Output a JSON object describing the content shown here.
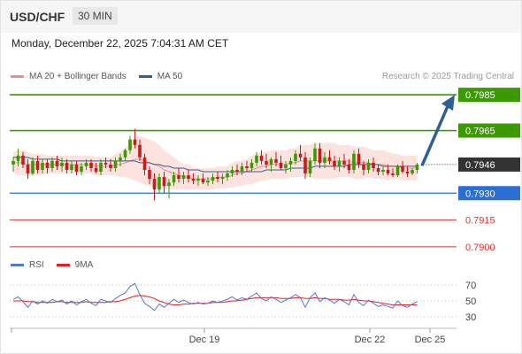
{
  "header": {
    "pair": "USD/CHF",
    "timeframe": "30 MIN"
  },
  "datetime": "Monday, December 22, 2025 7:04:31 AM CET",
  "legend": [
    {
      "label": "MA 20 + Bollinger Bands",
      "color": "#f28b8b"
    },
    {
      "label": "MA 50",
      "color": "#2e5f96"
    }
  ],
  "credit": "Research © 2025 Trading Central",
  "osc_legend": [
    {
      "label": "RSI",
      "color": "#5577cc"
    },
    {
      "label": "9MA",
      "color": "#e02020"
    }
  ],
  "chart_data": {
    "type": "candlestick",
    "ylim": [
      0.7895,
      0.799
    ],
    "current_price": "0.7946",
    "levels": [
      {
        "value": 0.7985,
        "label": "0.7985",
        "kind": "target",
        "color": "#3a9a00"
      },
      {
        "value": 0.7965,
        "label": "0.7965",
        "kind": "resistance",
        "color": "#3a9a00"
      },
      {
        "value": 0.793,
        "label": "0.7930",
        "kind": "pivot",
        "color": "#2b6fd4"
      },
      {
        "value": 0.7915,
        "label": "0.7915",
        "kind": "support",
        "color": "#e03030"
      },
      {
        "value": 0.79,
        "label": "0.7900",
        "kind": "support",
        "color": "#e03030"
      }
    ],
    "x_ticks": [
      "Dec 19",
      "Dec 22",
      "Dec 25"
    ],
    "candles": [
      [
        0.7946,
        0.795,
        0.7942,
        0.7948
      ],
      [
        0.7948,
        0.7955,
        0.7945,
        0.7951
      ],
      [
        0.7951,
        0.7953,
        0.7944,
        0.7946
      ],
      [
        0.7946,
        0.7949,
        0.7938,
        0.7941
      ],
      [
        0.7941,
        0.795,
        0.794,
        0.7948
      ],
      [
        0.7948,
        0.7951,
        0.7941,
        0.7943
      ],
      [
        0.7943,
        0.7949,
        0.7941,
        0.7947
      ],
      [
        0.7947,
        0.7949,
        0.7941,
        0.7944
      ],
      [
        0.7944,
        0.795,
        0.7942,
        0.7948
      ],
      [
        0.7948,
        0.7951,
        0.7943,
        0.7945
      ],
      [
        0.7945,
        0.795,
        0.7942,
        0.7947
      ],
      [
        0.7947,
        0.7949,
        0.7941,
        0.7943
      ],
      [
        0.7943,
        0.7948,
        0.7941,
        0.7946
      ],
      [
        0.7946,
        0.7948,
        0.794,
        0.7942
      ],
      [
        0.7942,
        0.7947,
        0.794,
        0.7945
      ],
      [
        0.7945,
        0.7949,
        0.7943,
        0.7947
      ],
      [
        0.7947,
        0.7949,
        0.7942,
        0.7944
      ],
      [
        0.7944,
        0.7947,
        0.7941,
        0.7942
      ],
      [
        0.7942,
        0.7949,
        0.794,
        0.7947
      ],
      [
        0.7947,
        0.795,
        0.7944,
        0.7946
      ],
      [
        0.7946,
        0.7949,
        0.7942,
        0.7944
      ],
      [
        0.7944,
        0.795,
        0.7942,
        0.7948
      ],
      [
        0.7948,
        0.7952,
        0.7945,
        0.795
      ],
      [
        0.795,
        0.7955,
        0.7948,
        0.7954
      ],
      [
        0.7954,
        0.7962,
        0.7952,
        0.796
      ],
      [
        0.796,
        0.7966,
        0.7955,
        0.7957
      ],
      [
        0.7957,
        0.796,
        0.7948,
        0.795
      ],
      [
        0.795,
        0.7952,
        0.794,
        0.7943
      ],
      [
        0.7943,
        0.7945,
        0.7935,
        0.7938
      ],
      [
        0.7938,
        0.7941,
        0.7926,
        0.7932
      ],
      [
        0.7932,
        0.7941,
        0.793,
        0.7939
      ],
      [
        0.7939,
        0.7942,
        0.793,
        0.7934
      ],
      [
        0.7934,
        0.7938,
        0.7927,
        0.7936
      ],
      [
        0.7936,
        0.7942,
        0.7934,
        0.794
      ],
      [
        0.794,
        0.7944,
        0.7936,
        0.7938
      ],
      [
        0.7938,
        0.7942,
        0.7935,
        0.794
      ],
      [
        0.794,
        0.7943,
        0.7936,
        0.7938
      ],
      [
        0.7938,
        0.7941,
        0.7935,
        0.7937
      ],
      [
        0.7937,
        0.794,
        0.7934,
        0.7938
      ],
      [
        0.7938,
        0.7941,
        0.7935,
        0.7936
      ],
      [
        0.7936,
        0.7939,
        0.7934,
        0.7937
      ],
      [
        0.7937,
        0.7941,
        0.7935,
        0.7939
      ],
      [
        0.7939,
        0.7942,
        0.7936,
        0.7938
      ],
      [
        0.7938,
        0.7941,
        0.7935,
        0.7939
      ],
      [
        0.7939,
        0.7943,
        0.7937,
        0.7941
      ],
      [
        0.7941,
        0.7945,
        0.7939,
        0.7943
      ],
      [
        0.7943,
        0.7946,
        0.794,
        0.7942
      ],
      [
        0.7942,
        0.7947,
        0.794,
        0.7945
      ],
      [
        0.7945,
        0.7948,
        0.7942,
        0.7944
      ],
      [
        0.7944,
        0.7949,
        0.7942,
        0.7947
      ],
      [
        0.7947,
        0.7953,
        0.7945,
        0.7951
      ],
      [
        0.7951,
        0.7954,
        0.7946,
        0.7948
      ],
      [
        0.7948,
        0.7952,
        0.7944,
        0.7946
      ],
      [
        0.7946,
        0.795,
        0.7942,
        0.7949
      ],
      [
        0.7949,
        0.7953,
        0.7945,
        0.7947
      ],
      [
        0.7947,
        0.7951,
        0.7943,
        0.7944
      ],
      [
        0.7944,
        0.7948,
        0.7941,
        0.7946
      ],
      [
        0.7946,
        0.795,
        0.7942,
        0.7948
      ],
      [
        0.7948,
        0.7954,
        0.7946,
        0.7952
      ],
      [
        0.7952,
        0.7957,
        0.7948,
        0.795
      ],
      [
        0.795,
        0.7953,
        0.7938,
        0.7941
      ],
      [
        0.7941,
        0.795,
        0.7939,
        0.7948
      ],
      [
        0.7948,
        0.7958,
        0.7946,
        0.7955
      ],
      [
        0.7955,
        0.7958,
        0.7944,
        0.7947
      ],
      [
        0.7947,
        0.7953,
        0.7944,
        0.795
      ],
      [
        0.795,
        0.7954,
        0.7946,
        0.7948
      ],
      [
        0.7948,
        0.7951,
        0.7943,
        0.7945
      ],
      [
        0.7945,
        0.795,
        0.7942,
        0.7948
      ],
      [
        0.7948,
        0.7952,
        0.7944,
        0.7946
      ],
      [
        0.7946,
        0.7949,
        0.7941,
        0.7943
      ],
      [
        0.7943,
        0.7954,
        0.7941,
        0.7952
      ],
      [
        0.7952,
        0.7955,
        0.7944,
        0.7946
      ],
      [
        0.7946,
        0.7948,
        0.794,
        0.7943
      ],
      [
        0.7943,
        0.7949,
        0.7941,
        0.7947
      ],
      [
        0.7947,
        0.795,
        0.7942,
        0.7944
      ],
      [
        0.7944,
        0.7946,
        0.794,
        0.7942
      ],
      [
        0.7942,
        0.7945,
        0.794,
        0.7943
      ],
      [
        0.7943,
        0.7946,
        0.794,
        0.7941
      ],
      [
        0.7941,
        0.7944,
        0.7939,
        0.794
      ],
      [
        0.794,
        0.7946,
        0.7939,
        0.7945
      ],
      [
        0.7945,
        0.7948,
        0.7941,
        0.7942
      ],
      [
        0.7942,
        0.7945,
        0.7939,
        0.7941
      ],
      [
        0.7941,
        0.7944,
        0.794,
        0.7943
      ],
      [
        0.7943,
        0.7947,
        0.7941,
        0.7946
      ]
    ],
    "ma20": [
      0.7947,
      0.7947,
      0.7947,
      0.7946,
      0.7946,
      0.7946,
      0.7946,
      0.7946,
      0.7946,
      0.7946,
      0.7946,
      0.7946,
      0.7946,
      0.7946,
      0.7946,
      0.7946,
      0.7946,
      0.7945,
      0.7945,
      0.7945,
      0.7945,
      0.7946,
      0.7946,
      0.7947,
      0.7948,
      0.7949,
      0.7949,
      0.7948,
      0.7947,
      0.7946,
      0.7945,
      0.7943,
      0.7942,
      0.7941,
      0.794,
      0.7939,
      0.7939,
      0.7938,
      0.7938,
      0.7938,
      0.7938,
      0.7938,
      0.7939,
      0.7939,
      0.7939,
      0.794,
      0.7941,
      0.7941,
      0.7942,
      0.7943,
      0.7944,
      0.7945,
      0.7945,
      0.7946,
      0.7946,
      0.7946,
      0.7946,
      0.7947,
      0.7947,
      0.7948,
      0.7948,
      0.7948,
      0.7948,
      0.7948,
      0.7948,
      0.7948,
      0.7948,
      0.7948,
      0.7948,
      0.7948,
      0.7947,
      0.7947,
      0.7947,
      0.7947,
      0.7946,
      0.7946,
      0.7946,
      0.7945,
      0.7945,
      0.7945,
      0.7944,
      0.7944,
      0.7944,
      0.7944
    ],
    "ma50": [
      0.795,
      0.795,
      0.795,
      0.795,
      0.7949,
      0.7949,
      0.7949,
      0.7949,
      0.7949,
      0.7949,
      0.7948,
      0.7948,
      0.7948,
      0.7948,
      0.7948,
      0.7948,
      0.7948,
      0.7948,
      0.7948,
      0.7948,
      0.7948,
      0.7948,
      0.7948,
      0.7948,
      0.7948,
      0.7948,
      0.7947,
      0.7947,
      0.7947,
      0.7946,
      0.7946,
      0.7945,
      0.7945,
      0.7944,
      0.7944,
      0.7944,
      0.7943,
      0.7943,
      0.7943,
      0.7942,
      0.7942,
      0.7942,
      0.7942,
      0.7942,
      0.7942,
      0.7942,
      0.7942,
      0.7942,
      0.7942,
      0.7942,
      0.7942,
      0.7942,
      0.7943,
      0.7943,
      0.7943,
      0.7943,
      0.7943,
      0.7944,
      0.7944,
      0.7944,
      0.7944,
      0.7944,
      0.7945,
      0.7945,
      0.7945,
      0.7945,
      0.7945,
      0.7945,
      0.7945,
      0.7946,
      0.7946,
      0.7946,
      0.7946,
      0.7946,
      0.7946,
      0.7946,
      0.7945,
      0.7945,
      0.7945,
      0.7945,
      0.7945,
      0.7945,
      0.7945,
      0.7945
    ],
    "bb_width": [
      0.0006,
      0.0007,
      0.0007,
      0.0007,
      0.0006,
      0.0006,
      0.0006,
      0.0005,
      0.0005,
      0.0005,
      0.0005,
      0.0005,
      0.0005,
      0.0005,
      0.0005,
      0.0005,
      0.0005,
      0.0005,
      0.0005,
      0.0005,
      0.0005,
      0.0006,
      0.0007,
      0.0008,
      0.001,
      0.0012,
      0.0013,
      0.0013,
      0.0013,
      0.0013,
      0.0012,
      0.0011,
      0.001,
      0.0009,
      0.0008,
      0.0007,
      0.0007,
      0.0006,
      0.0006,
      0.0006,
      0.0006,
      0.0006,
      0.0006,
      0.0006,
      0.0006,
      0.0007,
      0.0007,
      0.0007,
      0.0007,
      0.0008,
      0.0008,
      0.0008,
      0.0008,
      0.0008,
      0.0008,
      0.0008,
      0.0008,
      0.0008,
      0.0008,
      0.0009,
      0.0009,
      0.0009,
      0.001,
      0.001,
      0.001,
      0.001,
      0.001,
      0.0009,
      0.0009,
      0.0009,
      0.0009,
      0.0009,
      0.0009,
      0.0008,
      0.0008,
      0.0008,
      0.0008,
      0.0008,
      0.0007,
      0.0007,
      0.0007,
      0.0007,
      0.0007,
      0.0007
    ],
    "forecast": {
      "from": 0.7946,
      "to": 0.7985
    },
    "oscillator": {
      "ylim": [
        20,
        80
      ],
      "ticks": [
        70,
        50,
        30
      ],
      "rsi": [
        52,
        55,
        49,
        42,
        50,
        46,
        50,
        47,
        52,
        49,
        51,
        46,
        50,
        45,
        49,
        52,
        47,
        44,
        52,
        50,
        48,
        53,
        57,
        60,
        68,
        72,
        58,
        47,
        43,
        38,
        46,
        42,
        47,
        52,
        48,
        51,
        48,
        46,
        48,
        46,
        47,
        50,
        48,
        50,
        52,
        55,
        51,
        54,
        52,
        56,
        60,
        53,
        50,
        55,
        52,
        48,
        51,
        54,
        58,
        54,
        42,
        54,
        60,
        49,
        54,
        51,
        47,
        52,
        49,
        45,
        58,
        48,
        44,
        51,
        47,
        43,
        45,
        43,
        41,
        50,
        44,
        42,
        46,
        49
      ],
      "ma9": [
        50,
        50,
        50,
        49,
        49,
        48,
        48,
        48,
        48,
        49,
        49,
        48,
        48,
        48,
        48,
        49,
        48,
        48,
        48,
        48,
        49,
        49,
        50,
        52,
        54,
        56,
        57,
        56,
        55,
        53,
        50,
        48,
        46,
        45,
        45,
        46,
        46,
        47,
        47,
        47,
        47,
        48,
        48,
        48,
        49,
        50,
        50,
        51,
        52,
        53,
        54,
        54,
        54,
        54,
        54,
        53,
        53,
        53,
        54,
        54,
        53,
        53,
        54,
        53,
        53,
        52,
        52,
        52,
        51,
        51,
        52,
        51,
        50,
        50,
        49,
        48,
        47,
        46,
        45,
        45,
        45,
        45,
        45,
        45
      ]
    }
  }
}
